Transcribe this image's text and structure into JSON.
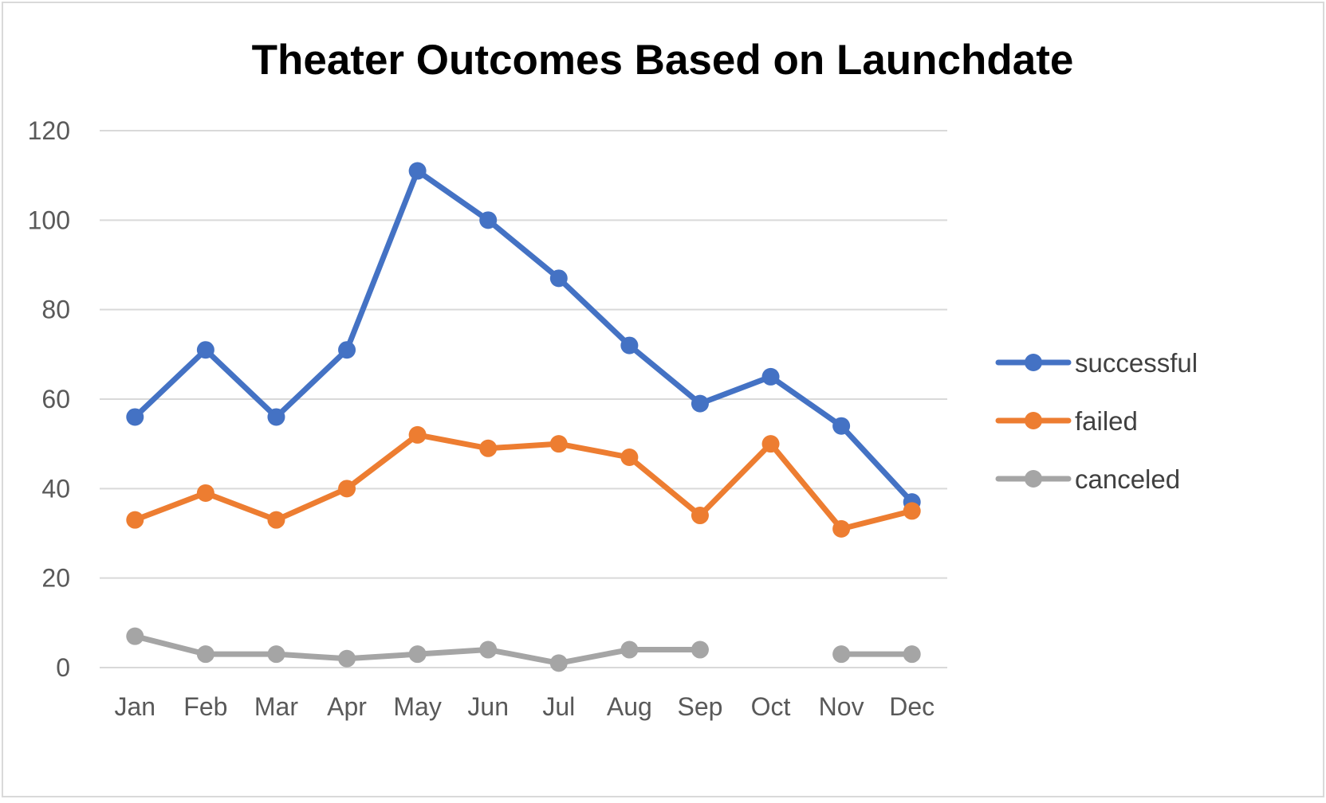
{
  "chart_data": {
    "type": "line",
    "title": "Theater Outcomes Based on Launchdate",
    "xlabel": "",
    "ylabel": "",
    "categories": [
      "Jan",
      "Feb",
      "Mar",
      "Apr",
      "May",
      "Jun",
      "Jul",
      "Aug",
      "Sep",
      "Oct",
      "Nov",
      "Dec"
    ],
    "ylim": [
      0,
      120
    ],
    "yticks": [
      0,
      20,
      40,
      60,
      80,
      100,
      120
    ],
    "grid": true,
    "legend_position": "right",
    "series": [
      {
        "name": "successful",
        "color": "#4472C4",
        "values": [
          56,
          71,
          56,
          71,
          111,
          100,
          87,
          72,
          59,
          65,
          54,
          37
        ]
      },
      {
        "name": "failed",
        "color": "#ED7D31",
        "values": [
          33,
          39,
          33,
          40,
          52,
          49,
          50,
          47,
          34,
          50,
          31,
          35
        ]
      },
      {
        "name": "canceled",
        "color": "#A5A5A5",
        "values": [
          7,
          3,
          3,
          2,
          3,
          4,
          1,
          4,
          4,
          null,
          3,
          3
        ]
      }
    ]
  }
}
